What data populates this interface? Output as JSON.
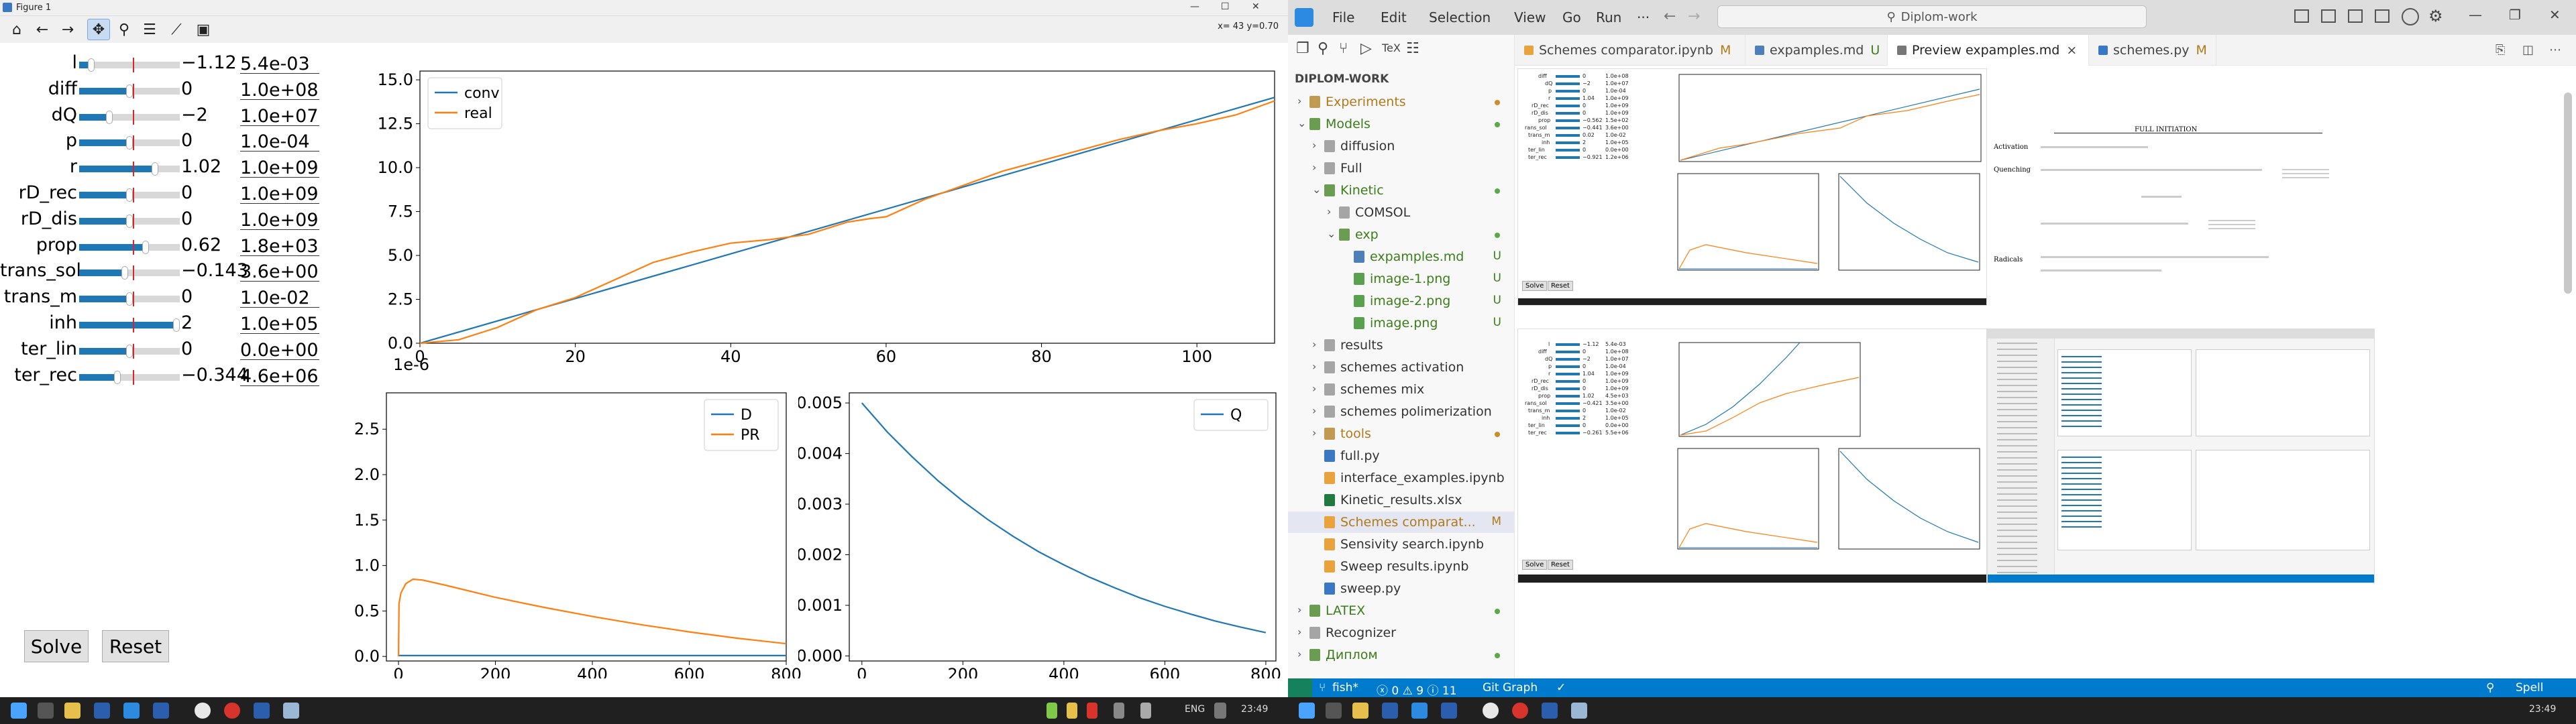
{
  "matplotlib": {
    "window_title": "Figure 1",
    "coord_readout": "x= 43 y=0.70",
    "sliders": [
      {
        "label": "l",
        "value": "−1.12",
        "box": "5.4e-03",
        "fill": 0.12
      },
      {
        "label": "diff",
        "value": "0",
        "box": "1.0e+08",
        "fill": 0.5
      },
      {
        "label": "dQ",
        "value": "−2",
        "box": "1.0e+07",
        "fill": 0.3
      },
      {
        "label": "p",
        "value": "0",
        "box": "1.0e-04",
        "fill": 0.5
      },
      {
        "label": "r",
        "value": "1.02",
        "box": "1.0e+09",
        "fill": 0.75
      },
      {
        "label": "rD_rec",
        "value": "0",
        "box": "1.0e+09",
        "fill": 0.5
      },
      {
        "label": "rD_dis",
        "value": "0",
        "box": "1.0e+09",
        "fill": 0.5
      },
      {
        "label": "prop",
        "value": "0.62",
        "box": "1.8e+03",
        "fill": 0.66
      },
      {
        "label": "trans_sol",
        "value": "−0.143",
        "box": "3.6e+00",
        "fill": 0.45
      },
      {
        "label": "trans_m",
        "value": "0",
        "box": "1.0e-02",
        "fill": 0.5
      },
      {
        "label": "inh",
        "value": "2",
        "box": "1.0e+05",
        "fill": 1.0
      },
      {
        "label": "ter_lin",
        "value": "0",
        "box": "0.0e+00",
        "fill": 0.5
      },
      {
        "label": "ter_rec",
        "value": "−0.344",
        "box": "4.6e+06",
        "fill": 0.38
      }
    ],
    "solve_label": "Solve",
    "reset_label": "Reset"
  },
  "chart_data": [
    {
      "type": "line",
      "title": "",
      "xlim": [
        0,
        110
      ],
      "ylim": [
        0,
        15.5
      ],
      "x_ticks": [
        "0",
        "20",
        "40",
        "60",
        "80",
        "100"
      ],
      "y_ticks": [
        "0.0",
        "2.5",
        "5.0",
        "7.5",
        "10.0",
        "12.5",
        "15.0"
      ],
      "offset_text": "1e-6",
      "legend": "top-left",
      "series": [
        {
          "name": "conv",
          "color": "#1f77b4",
          "x": [
            0,
            110
          ],
          "y": [
            0,
            14.0
          ]
        },
        {
          "name": "real",
          "color": "#ff7f0e",
          "x": [
            0,
            5,
            10,
            15,
            20,
            25,
            30,
            35,
            40,
            45,
            50,
            55,
            58,
            60,
            65,
            70,
            75,
            80,
            85,
            90,
            95,
            100,
            105,
            110
          ],
          "y": [
            0,
            0.2,
            0.9,
            1.9,
            2.6,
            3.6,
            4.6,
            5.2,
            5.7,
            5.9,
            6.2,
            6.9,
            7.1,
            7.2,
            8.2,
            9.0,
            9.8,
            10.4,
            11.0,
            11.6,
            12.1,
            12.5,
            13.0,
            13.8
          ]
        }
      ]
    },
    {
      "type": "line",
      "title": "",
      "xlim": [
        -25,
        800
      ],
      "ylim": [
        -0.05,
        2.9
      ],
      "x_ticks": [
        "0",
        "200",
        "400",
        "600",
        "800"
      ],
      "y_ticks": [
        "0.0",
        "0.5",
        "1.0",
        "1.5",
        "2.0",
        "2.5"
      ],
      "legend": "top-right",
      "series": [
        {
          "name": "D",
          "color": "#1f77b4",
          "x": [
            0,
            800
          ],
          "y": [
            0.01,
            0.01
          ]
        },
        {
          "name": "PR",
          "color": "#ff7f0e",
          "x": [
            0,
            1,
            5,
            15,
            30,
            50,
            100,
            200,
            300,
            400,
            500,
            600,
            700,
            800
          ],
          "y": [
            0,
            0.58,
            0.7,
            0.8,
            0.85,
            0.84,
            0.78,
            0.65,
            0.54,
            0.44,
            0.35,
            0.27,
            0.2,
            0.14
          ]
        }
      ]
    },
    {
      "type": "line",
      "title": "",
      "xlim": [
        -25,
        820
      ],
      "ylim": [
        -0.0001,
        0.0052
      ],
      "x_ticks": [
        "0",
        "200",
        "400",
        "600",
        "800"
      ],
      "y_ticks": [
        "0.000",
        "0.001",
        "0.002",
        "0.003",
        "0.004",
        "0.005"
      ],
      "legend": "top-right",
      "series": [
        {
          "name": "Q",
          "color": "#1f77b4",
          "x": [
            0,
            50,
            100,
            150,
            200,
            250,
            300,
            350,
            400,
            450,
            500,
            550,
            600,
            650,
            700,
            750,
            800
          ],
          "y": [
            0.005,
            0.00443,
            0.00393,
            0.00347,
            0.00306,
            0.00269,
            0.00236,
            0.00206,
            0.0018,
            0.00156,
            0.00135,
            0.00115,
            0.00098,
            0.00083,
            0.00069,
            0.00057,
            0.00046
          ]
        }
      ]
    }
  ],
  "vscode": {
    "menu": [
      "File",
      "Edit",
      "Selection",
      "View",
      "Go",
      "Run",
      "···"
    ],
    "search_text": "Diplom-work",
    "explorer_title": "DIPLOM-WORK",
    "tree": [
      {
        "name": "Experiments",
        "indent": 0,
        "kind": "folder",
        "open": false,
        "color": "#b07a1a",
        "status": "dot",
        "status_color": "#c98d2b"
      },
      {
        "name": "Models",
        "indent": 0,
        "kind": "folder",
        "open": true,
        "color": "#3b7d1a",
        "status": "dot",
        "status_color": "#5aa84a"
      },
      {
        "name": "diffusion",
        "indent": 1,
        "kind": "folder",
        "open": false,
        "color": "#333",
        "status": "",
        "status_color": ""
      },
      {
        "name": "Full",
        "indent": 1,
        "kind": "folder",
        "open": false,
        "color": "#333",
        "status": "",
        "status_color": ""
      },
      {
        "name": "Kinetic",
        "indent": 1,
        "kind": "folder",
        "open": true,
        "color": "#3b7d1a",
        "status": "dot",
        "status_color": "#5aa84a"
      },
      {
        "name": "COMSOL",
        "indent": 2,
        "kind": "folder",
        "open": false,
        "color": "#333",
        "status": "",
        "status_color": ""
      },
      {
        "name": "exp",
        "indent": 2,
        "kind": "folder",
        "open": true,
        "color": "#3b7d1a",
        "status": "dot",
        "status_color": "#5aa84a"
      },
      {
        "name": "expamples.md",
        "indent": 3,
        "kind": "md",
        "open": false,
        "color": "#3b7d1a",
        "status": "U",
        "status_color": "#3b7d1a"
      },
      {
        "name": "image-1.png",
        "indent": 3,
        "kind": "img",
        "open": false,
        "color": "#3b7d1a",
        "status": "U",
        "status_color": "#3b7d1a"
      },
      {
        "name": "image-2.png",
        "indent": 3,
        "kind": "img",
        "open": false,
        "color": "#3b7d1a",
        "status": "U",
        "status_color": "#3b7d1a"
      },
      {
        "name": "image.png",
        "indent": 3,
        "kind": "img",
        "open": false,
        "color": "#3b7d1a",
        "status": "U",
        "status_color": "#3b7d1a"
      },
      {
        "name": "results",
        "indent": 1,
        "kind": "folder",
        "open": false,
        "color": "#333",
        "status": "",
        "status_color": ""
      },
      {
        "name": "schemes activation",
        "indent": 1,
        "kind": "folder",
        "open": false,
        "color": "#333",
        "status": "",
        "status_color": ""
      },
      {
        "name": "schemes mix",
        "indent": 1,
        "kind": "folder",
        "open": false,
        "color": "#333",
        "status": "",
        "status_color": ""
      },
      {
        "name": "schemes polimerization",
        "indent": 1,
        "kind": "folder",
        "open": false,
        "color": "#333",
        "status": "",
        "status_color": ""
      },
      {
        "name": "tools",
        "indent": 1,
        "kind": "folder",
        "open": false,
        "color": "#b07a1a",
        "status": "dot",
        "status_color": "#c98d2b"
      },
      {
        "name": "full.py",
        "indent": 1,
        "kind": "py",
        "open": false,
        "color": "#333",
        "status": "",
        "status_color": ""
      },
      {
        "name": "interface_examples.ipynb",
        "indent": 1,
        "kind": "nb",
        "open": false,
        "color": "#333",
        "status": "",
        "status_color": ""
      },
      {
        "name": "Kinetic_results.xlsx",
        "indent": 1,
        "kind": "xl",
        "open": false,
        "color": "#333",
        "status": "",
        "status_color": ""
      },
      {
        "name": "Schemes comparat...",
        "indent": 1,
        "kind": "nb",
        "open": false,
        "color": "#b07a1a",
        "status": "M",
        "status_color": "#b07a1a",
        "selected": true
      },
      {
        "name": "Sensivity search.ipynb",
        "indent": 1,
        "kind": "nb",
        "open": false,
        "color": "#333",
        "status": "",
        "status_color": ""
      },
      {
        "name": "Sweep results.ipynb",
        "indent": 1,
        "kind": "nb",
        "open": false,
        "color": "#333",
        "status": "",
        "status_color": ""
      },
      {
        "name": "sweep.py",
        "indent": 1,
        "kind": "py",
        "open": false,
        "color": "#333",
        "status": "",
        "status_color": ""
      },
      {
        "name": "LATEX",
        "indent": 0,
        "kind": "folder",
        "open": false,
        "color": "#3b7d1a",
        "status": "dot",
        "status_color": "#5aa84a"
      },
      {
        "name": "Recognizer",
        "indent": 0,
        "kind": "folder",
        "open": false,
        "color": "#333",
        "status": "",
        "status_color": ""
      },
      {
        "name": "Диплом",
        "indent": 0,
        "kind": "folder",
        "open": false,
        "color": "#3b7d1a",
        "status": "dot",
        "status_color": "#5aa84a"
      }
    ],
    "tabs": [
      {
        "label": "Schemes comparator.ipynb",
        "status": "M",
        "icon_color": "#e8a33d",
        "active": false
      },
      {
        "label": "expamples.md",
        "status": "U",
        "icon_color": "#4e7fb8",
        "active": false
      },
      {
        "label": "Preview expamples.md",
        "status": "×",
        "icon_color": "#777",
        "active": true
      },
      {
        "label": "schemes.py",
        "status": "M",
        "icon_color": "#3b78c4",
        "active": false
      }
    ],
    "status": {
      "branch": "fish*",
      "problems": "ⓧ 0 ⚠ 9 ⓘ 11",
      "git_graph": "Git Graph",
      "spell": "Spell"
    },
    "preview": {
      "heading": "FULL INITIATION",
      "rows": [
        "Activation",
        "Quenching",
        "Radicals"
      ],
      "mini_sliders": [
        {
          "label": "diff",
          "value": "0",
          "box": "1.0e+08"
        },
        {
          "label": "dQ",
          "value": "−2",
          "box": "1.0e+07"
        },
        {
          "label": "p",
          "value": "0",
          "box": "1.0e-04"
        },
        {
          "label": "r",
          "value": "1.04",
          "box": "1.0e+09"
        },
        {
          "label": "rD_rec",
          "value": "0",
          "box": "1.0e+09"
        },
        {
          "label": "rD_dis",
          "value": "0",
          "box": "1.0e+09"
        },
        {
          "label": "prop",
          "value": "−0.562",
          "box": "1.5e+02"
        },
        {
          "label": "rans_sol",
          "value": "−0.441",
          "box": "3.6e+00"
        },
        {
          "label": "trans_m",
          "value": "0.02",
          "box": "1.0e-02"
        },
        {
          "label": "inh",
          "value": "2",
          "box": "1.0e+05"
        },
        {
          "label": "ter_lin",
          "value": "0",
          "box": "0.0e+00"
        },
        {
          "label": "ter_rec",
          "value": "−0.921",
          "box": "1.2e+06"
        }
      ],
      "mini_sliders_2": [
        {
          "label": "l",
          "value": "−1.12",
          "box": "5.4e-03"
        },
        {
          "label": "diff",
          "value": "0",
          "box": "1.0e+08"
        },
        {
          "label": "dQ",
          "value": "−2",
          "box": "1.0e+07"
        },
        {
          "label": "p",
          "value": "0",
          "box": "1.0e-04"
        },
        {
          "label": "r",
          "value": "1.04",
          "box": "1.0e+09"
        },
        {
          "label": "rD_rec",
          "value": "0",
          "box": "1.0e+09"
        },
        {
          "label": "rD_dis",
          "value": "0",
          "box": "1.0e+09"
        },
        {
          "label": "prop",
          "value": "1.02",
          "box": "4.5e+03"
        },
        {
          "label": "rans_sol",
          "value": "−0.421",
          "box": "3.5e+00"
        },
        {
          "label": "trans_m",
          "value": "0",
          "box": "1.0e-02"
        },
        {
          "label": "inh",
          "value": "2",
          "box": "1.0e+05"
        },
        {
          "label": "ter_lin",
          "value": "0",
          "box": "0.0e+00"
        },
        {
          "label": "ter_rec",
          "value": "−0.261",
          "box": "5.5e+06"
        }
      ],
      "solve": "Solve",
      "reset": "Reset"
    }
  },
  "taskbar": {
    "lang": "ENG",
    "time_left": "23:49",
    "time_right": "23:49"
  }
}
